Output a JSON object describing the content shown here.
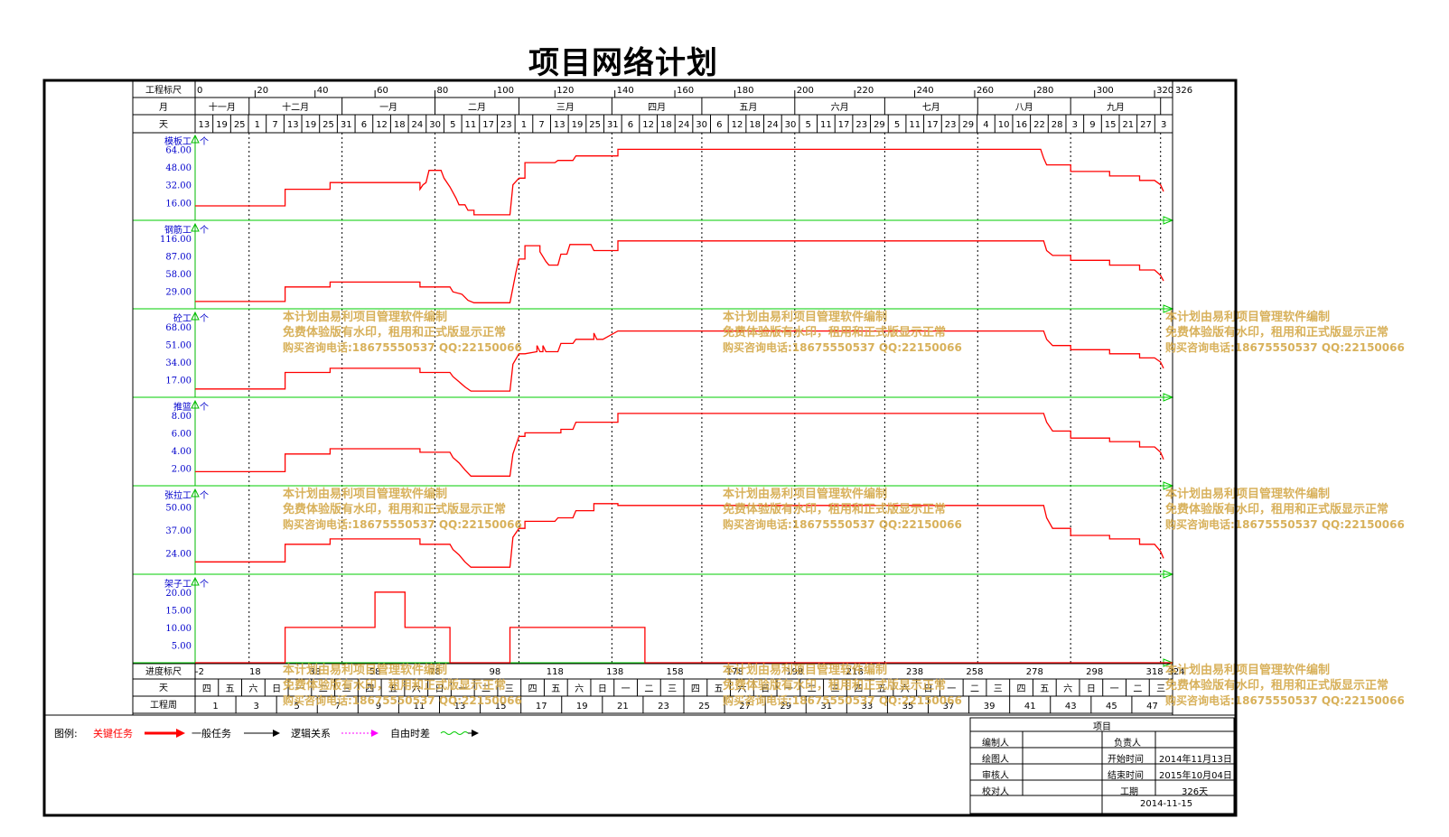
{
  "title": "项目网络计划",
  "header": {
    "row1_label": "工程标尺",
    "row2_label": "月",
    "row3_label": "天",
    "scale_ticks": [
      0,
      20,
      40,
      60,
      80,
      100,
      120,
      140,
      160,
      180,
      200,
      220,
      240,
      260,
      280,
      300,
      320
    ],
    "scale_end": 326,
    "months": [
      {
        "label": "十一月",
        "start": 0,
        "end": 18
      },
      {
        "label": "十二月",
        "start": 18,
        "end": 49
      },
      {
        "label": "一月",
        "start": 49,
        "end": 80
      },
      {
        "label": "二月",
        "start": 80,
        "end": 108
      },
      {
        "label": "三月",
        "start": 108,
        "end": 139
      },
      {
        "label": "四月",
        "start": 139,
        "end": 169
      },
      {
        "label": "五月",
        "start": 169,
        "end": 200
      },
      {
        "label": "六月",
        "start": 200,
        "end": 230
      },
      {
        "label": "七月",
        "start": 230,
        "end": 261
      },
      {
        "label": "八月",
        "start": 261,
        "end": 292
      },
      {
        "label": "九月",
        "start": 292,
        "end": 322
      }
    ],
    "days": [
      "13",
      "19",
      "25",
      "1",
      "7",
      "13",
      "19",
      "25",
      "31",
      "6",
      "12",
      "18",
      "24",
      "30",
      "5",
      "11",
      "17",
      "23",
      "1",
      "7",
      "13",
      "19",
      "25",
      "31",
      "6",
      "12",
      "18",
      "24",
      "30",
      "6",
      "12",
      "18",
      "24",
      "30",
      "5",
      "11",
      "17",
      "23",
      "29",
      "5",
      "11",
      "17",
      "23",
      "29",
      "4",
      "10",
      "16",
      "22",
      "28",
      "3",
      "9",
      "15",
      "21",
      "27",
      "3"
    ]
  },
  "footer": {
    "row1_label": "进度标尺",
    "row2_label": "天",
    "row3_label": "工程周",
    "progress_ticks": [
      "-2",
      "18",
      "38",
      "58",
      "78",
      "98",
      "118",
      "138",
      "158",
      "178",
      "198",
      "218",
      "238",
      "258",
      "278",
      "298",
      "318",
      "324"
    ],
    "weekdays": [
      "四",
      "五",
      "六",
      "日",
      "一",
      "二",
      "三",
      "四",
      "五",
      "六",
      "日",
      "一",
      "二",
      "三",
      "四",
      "五",
      "六",
      "日",
      "一",
      "二",
      "三",
      "四",
      "五",
      "六",
      "日",
      "一",
      "二",
      "三",
      "四",
      "五",
      "六",
      "日",
      "一",
      "二",
      "三",
      "四",
      "五",
      "六",
      "日",
      "一",
      "二",
      "三"
    ],
    "weeks": [
      "1",
      "3",
      "5",
      "7",
      "9",
      "11",
      "13",
      "15",
      "17",
      "19",
      "21",
      "23",
      "25",
      "27",
      "29",
      "31",
      "33",
      "35",
      "37",
      "39",
      "41",
      "43",
      "45",
      "47"
    ]
  },
  "chart_data": {
    "type": "line",
    "x_unit": "天",
    "xlim": [
      0,
      326
    ],
    "series": [
      {
        "name": "模板工",
        "unit": "个",
        "ticks": [
          "16.00",
          "32.00",
          "48.00",
          "64.00"
        ],
        "ylim": [
          0,
          70
        ],
        "points": [
          [
            0,
            13
          ],
          [
            30,
            13
          ],
          [
            30,
            28
          ],
          [
            45,
            28
          ],
          [
            45,
            34
          ],
          [
            75,
            34
          ],
          [
            75,
            28
          ],
          [
            76,
            32
          ],
          [
            77,
            34
          ],
          [
            78,
            45
          ],
          [
            82,
            45
          ],
          [
            83,
            38
          ],
          [
            85,
            30
          ],
          [
            87,
            20
          ],
          [
            88,
            14
          ],
          [
            90,
            14
          ],
          [
            91,
            9
          ],
          [
            93,
            9
          ],
          [
            93,
            5
          ],
          [
            105,
            5
          ],
          [
            106,
            32
          ],
          [
            108,
            38
          ],
          [
            110,
            38
          ],
          [
            110,
            52
          ],
          [
            120,
            52
          ],
          [
            121,
            54
          ],
          [
            126,
            54
          ],
          [
            127,
            58
          ],
          [
            141,
            58
          ],
          [
            141,
            64
          ],
          [
            282,
            64
          ],
          [
            283,
            56
          ],
          [
            284,
            50
          ],
          [
            292,
            50
          ],
          [
            292,
            44
          ],
          [
            305,
            44
          ],
          [
            305,
            40
          ],
          [
            315,
            40
          ],
          [
            315,
            36
          ],
          [
            320,
            36
          ],
          [
            322,
            32
          ],
          [
            323,
            26
          ]
        ]
      },
      {
        "name": "钢筋工",
        "unit": "个",
        "ticks": [
          "29.00",
          "58.00",
          "87.00",
          "116.00"
        ],
        "ylim": [
          0,
          128
        ],
        "points": [
          [
            0,
            12
          ],
          [
            30,
            12
          ],
          [
            30,
            36
          ],
          [
            45,
            36
          ],
          [
            45,
            44
          ],
          [
            75,
            44
          ],
          [
            75,
            36
          ],
          [
            85,
            36
          ],
          [
            86,
            28
          ],
          [
            89,
            24
          ],
          [
            91,
            14
          ],
          [
            93,
            10
          ],
          [
            105,
            10
          ],
          [
            107,
            60
          ],
          [
            108,
            82
          ],
          [
            110,
            82
          ],
          [
            110,
            104
          ],
          [
            115,
            104
          ],
          [
            115,
            94
          ],
          [
            117,
            78
          ],
          [
            118,
            72
          ],
          [
            121,
            72
          ],
          [
            122,
            90
          ],
          [
            124,
            90
          ],
          [
            125,
            106
          ],
          [
            132,
            106
          ],
          [
            133,
            96
          ],
          [
            138,
            96
          ],
          [
            141,
            96
          ],
          [
            141,
            112
          ],
          [
            283,
            112
          ],
          [
            284,
            96
          ],
          [
            286,
            88
          ],
          [
            292,
            88
          ],
          [
            292,
            80
          ],
          [
            305,
            80
          ],
          [
            305,
            72
          ],
          [
            315,
            72
          ],
          [
            315,
            64
          ],
          [
            320,
            64
          ],
          [
            322,
            55
          ],
          [
            323,
            46
          ]
        ]
      },
      {
        "name": "砼工",
        "unit": "个",
        "ticks": [
          "17.00",
          "34.00",
          "51.00",
          "68.00"
        ],
        "ylim": [
          0,
          75
        ],
        "points": [
          [
            0,
            8
          ],
          [
            30,
            8
          ],
          [
            30,
            24
          ],
          [
            45,
            24
          ],
          [
            45,
            28
          ],
          [
            75,
            28
          ],
          [
            75,
            24
          ],
          [
            85,
            24
          ],
          [
            86,
            20
          ],
          [
            88,
            15
          ],
          [
            90,
            10
          ],
          [
            92,
            6
          ],
          [
            105,
            6
          ],
          [
            106,
            32
          ],
          [
            108,
            42
          ],
          [
            110,
            42
          ],
          [
            114,
            44
          ],
          [
            114,
            50
          ],
          [
            115,
            44
          ],
          [
            116,
            44
          ],
          [
            116,
            50
          ],
          [
            117,
            44
          ],
          [
            118,
            44
          ],
          [
            121,
            44
          ],
          [
            122,
            52
          ],
          [
            126,
            52
          ],
          [
            127,
            56
          ],
          [
            133,
            56
          ],
          [
            133,
            62
          ],
          [
            134,
            56
          ],
          [
            136,
            56
          ],
          [
            141,
            64
          ],
          [
            283,
            64
          ],
          [
            284,
            56
          ],
          [
            286,
            50
          ],
          [
            292,
            50
          ],
          [
            292,
            46
          ],
          [
            305,
            46
          ],
          [
            305,
            42
          ],
          [
            315,
            42
          ],
          [
            315,
            38
          ],
          [
            320,
            38
          ],
          [
            322,
            34
          ],
          [
            323,
            28
          ]
        ]
      },
      {
        "name": "推篮",
        "unit": "个",
        "ticks": [
          "2.00",
          "4.00",
          "6.00",
          "8.00"
        ],
        "ylim": [
          0,
          8.8
        ],
        "points": [
          [
            0,
            1.6
          ],
          [
            30,
            1.6
          ],
          [
            30,
            3.6
          ],
          [
            45,
            3.6
          ],
          [
            45,
            4.2
          ],
          [
            75,
            4.2
          ],
          [
            75,
            3.8
          ],
          [
            85,
            3.8
          ],
          [
            86,
            3.2
          ],
          [
            88,
            2.6
          ],
          [
            90,
            1.8
          ],
          [
            92,
            1.1
          ],
          [
            105,
            1.1
          ],
          [
            106,
            3.6
          ],
          [
            108,
            5.6
          ],
          [
            110,
            5.6
          ],
          [
            110,
            6.0
          ],
          [
            122,
            6.0
          ],
          [
            122,
            6.4
          ],
          [
            126,
            6.4
          ],
          [
            127,
            7.2
          ],
          [
            141,
            7.2
          ],
          [
            141,
            8.2
          ],
          [
            283,
            8.2
          ],
          [
            284,
            7.2
          ],
          [
            286,
            6.2
          ],
          [
            292,
            6.2
          ],
          [
            292,
            5.4
          ],
          [
            305,
            5.4
          ],
          [
            305,
            5.0
          ],
          [
            315,
            5.0
          ],
          [
            315,
            4.4
          ],
          [
            320,
            4.4
          ],
          [
            322,
            3.8
          ],
          [
            323,
            3.0
          ]
        ]
      },
      {
        "name": "张拉工",
        "unit": "个",
        "ticks": [
          "24.00",
          "37.00",
          "50.00"
        ],
        "ylim": [
          12,
          56
        ],
        "points": [
          [
            0,
            19
          ],
          [
            30,
            19
          ],
          [
            30,
            29
          ],
          [
            45,
            29
          ],
          [
            45,
            32
          ],
          [
            75,
            32
          ],
          [
            75,
            29
          ],
          [
            85,
            29
          ],
          [
            86,
            26
          ],
          [
            88,
            23
          ],
          [
            90,
            19
          ],
          [
            92,
            16
          ],
          [
            105,
            16
          ],
          [
            106,
            33
          ],
          [
            108,
            38
          ],
          [
            110,
            38
          ],
          [
            110,
            42
          ],
          [
            120,
            42
          ],
          [
            121,
            44
          ],
          [
            126,
            44
          ],
          [
            127,
            48
          ],
          [
            133,
            48
          ],
          [
            133,
            52
          ],
          [
            141,
            52
          ],
          [
            141,
            51
          ],
          [
            283,
            51
          ],
          [
            284,
            44
          ],
          [
            286,
            38
          ],
          [
            292,
            38
          ],
          [
            292,
            34
          ],
          [
            305,
            34
          ],
          [
            305,
            32
          ],
          [
            315,
            32
          ],
          [
            315,
            29
          ],
          [
            320,
            29
          ],
          [
            322,
            25
          ],
          [
            323,
            21
          ]
        ]
      },
      {
        "name": "架子工",
        "unit": "个",
        "ticks": [
          "5.00",
          "10.00",
          "15.00",
          "20.00"
        ],
        "ylim": [
          0,
          22
        ],
        "points": [
          [
            0,
            0
          ],
          [
            30,
            0
          ],
          [
            30,
            10
          ],
          [
            60,
            10
          ],
          [
            60,
            20
          ],
          [
            70,
            20
          ],
          [
            70,
            10
          ],
          [
            85,
            10
          ],
          [
            85,
            0
          ],
          [
            105,
            0
          ],
          [
            105,
            10
          ],
          [
            150,
            10
          ],
          [
            150,
            0
          ],
          [
            326,
            0
          ]
        ]
      }
    ]
  },
  "watermark": {
    "line1": "本计划由易利项目管理软件编制",
    "line2": "免费体验版有水印，租用和正式版显示正常",
    "line3": "购买咨询电话:18675550537 QQ:22150066"
  },
  "legend": {
    "label": "图例:",
    "critical": "关键任务",
    "normal": "一般任务",
    "logic": "逻辑关系",
    "float": "自由时差"
  },
  "title_block": {
    "project_label": "项目",
    "editor_label": "编制人",
    "drawer_label": "绘图人",
    "reviewer_label": "审核人",
    "checker_label": "校对人",
    "leader_label": "负责人",
    "start_label": "开始时间",
    "start_value": "2014年11月13日",
    "end_label": "结束时间",
    "end_value": "2015年10月04日",
    "duration_label": "工期",
    "duration_value": "326天",
    "date_value": "2014-11-15"
  },
  "colors": {
    "series": "#ff0000",
    "separator": "#00cc00",
    "axis": "#00bb00",
    "label": "#0000cc",
    "watermark": "#d4a94a"
  }
}
